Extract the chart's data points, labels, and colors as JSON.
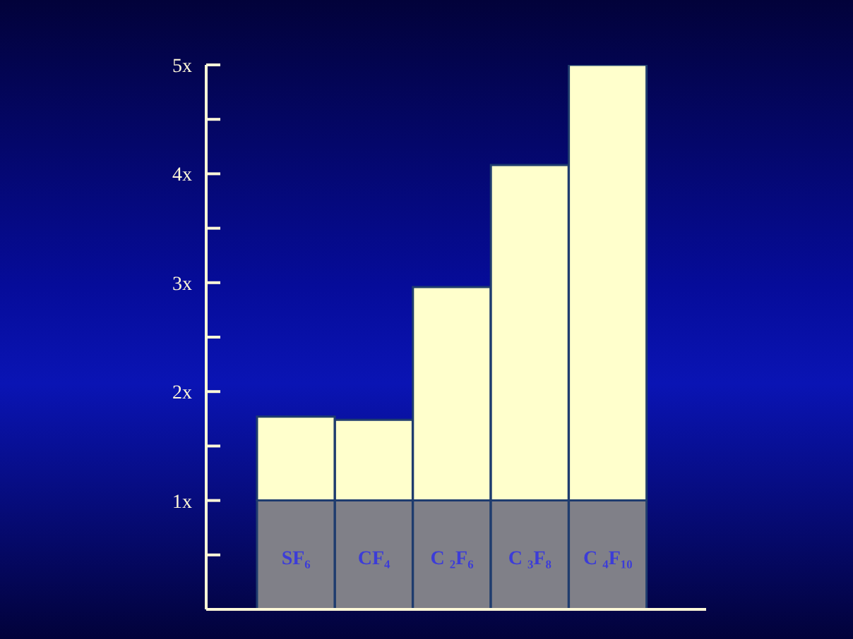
{
  "chart_data": {
    "type": "bar",
    "stacked": true,
    "categories": [
      "SF₆",
      "CF₄",
      "C ₂F₆",
      "C ₃F₈",
      "C ₄F₁₀"
    ],
    "series": [
      {
        "color": "#808088",
        "values": [
          1,
          1,
          1,
          1,
          1
        ]
      },
      {
        "color": "#ffffcc",
        "values": [
          0.77,
          0.74,
          1.96,
          3.08,
          4
        ]
      }
    ],
    "ylim": [
      0,
      5
    ],
    "yticks": [
      {
        "value": 0.5,
        "label": null
      },
      {
        "value": 1,
        "label": "1x"
      },
      {
        "value": 1.5,
        "label": null
      },
      {
        "value": 2,
        "label": "2x"
      },
      {
        "value": 2.5,
        "label": null
      },
      {
        "value": 3,
        "label": "3x"
      },
      {
        "value": 3.5,
        "label": null
      },
      {
        "value": 4,
        "label": "4x"
      },
      {
        "value": 4.5,
        "label": null
      },
      {
        "value": 5,
        "label": "5x"
      }
    ],
    "grid": false,
    "legend": false
  }
}
